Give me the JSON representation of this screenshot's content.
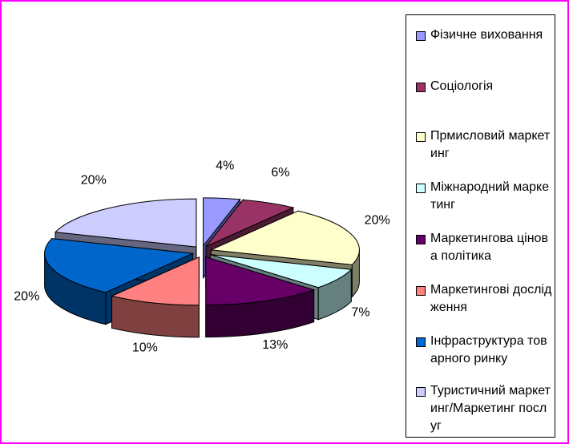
{
  "chart_data": {
    "type": "pie",
    "title": "",
    "slices": [
      {
        "label": "Фізичне виховання",
        "value": 4,
        "display": "4%",
        "color": "#9999ff",
        "dark": "#4d4d8f"
      },
      {
        "label": "Соціологія",
        "value": 6,
        "display": "6%",
        "color": "#993366",
        "dark": "#4d1a33"
      },
      {
        "label": "Прмисловий маркетинг",
        "value": 20,
        "display": "20%",
        "color": "#ffffcc",
        "dark": "#7f7f66"
      },
      {
        "label": "Міжнародний маркетинг",
        "value": 7,
        "display": "7%",
        "color": "#ccffff",
        "dark": "#667f7f"
      },
      {
        "label": "Маркетингова цінова політика",
        "value": 13,
        "display": "13%",
        "color": "#660066",
        "dark": "#330033"
      },
      {
        "label": "Маркетингові дослідження",
        "value": 10,
        "display": "10%",
        "color": "#ff8080",
        "dark": "#804040"
      },
      {
        "label": "Інфраструктура товарного ринку",
        "value": 20,
        "display": "20%",
        "color": "#0066cc",
        "dark": "#003366"
      },
      {
        "label": "Туристичний маркетинг/Маркетинг послуг",
        "value": 20,
        "display": "20%",
        "color": "#ccccff",
        "dark": "#666680"
      }
    ],
    "legend_position": "right",
    "exploded": true,
    "three_d": true
  }
}
